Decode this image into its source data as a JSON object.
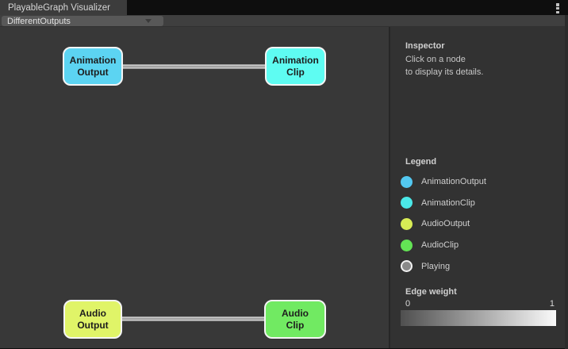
{
  "window": {
    "tab_title": "PlayableGraph Visualizer",
    "kebab_icon": "vertical-ellipsis"
  },
  "toolbar": {
    "graph_selector": {
      "value": "DifferentOutputs"
    }
  },
  "graph": {
    "nodes": [
      {
        "id": "animation-output",
        "line1": "Animation",
        "line2": "Output",
        "color": "#5cd4f2"
      },
      {
        "id": "animation-clip",
        "line1": "Animation",
        "line2": "Clip",
        "color": "#5efcf2"
      },
      {
        "id": "audio-output",
        "line1": "Audio",
        "line2": "Output",
        "color": "#e0f468"
      },
      {
        "id": "audio-clip",
        "line1": "Audio",
        "line2": "Clip",
        "color": "#71ea62"
      }
    ],
    "edges": [
      {
        "from": "animation-output",
        "to": "animation-clip"
      },
      {
        "from": "audio-output",
        "to": "audio-clip"
      }
    ]
  },
  "inspector": {
    "title": "Inspector",
    "body_line1": "Click on a node",
    "body_line2": "to display its details."
  },
  "legend": {
    "title": "Legend",
    "items": [
      {
        "label": "AnimationOutput",
        "color": "#53c8f0"
      },
      {
        "label": "AnimationClip",
        "color": "#4be8e8"
      },
      {
        "label": "AudioOutput",
        "color": "#d8ec55"
      },
      {
        "label": "AudioClip",
        "color": "#63e455"
      },
      {
        "label": "Playing",
        "color": "#8a8a8a",
        "ring": true
      }
    ]
  },
  "edge_weight": {
    "title": "Edge weight",
    "min_label": "0",
    "max_label": "1",
    "gradient_start": "#4f4f4f",
    "gradient_end": "#fafafa"
  }
}
